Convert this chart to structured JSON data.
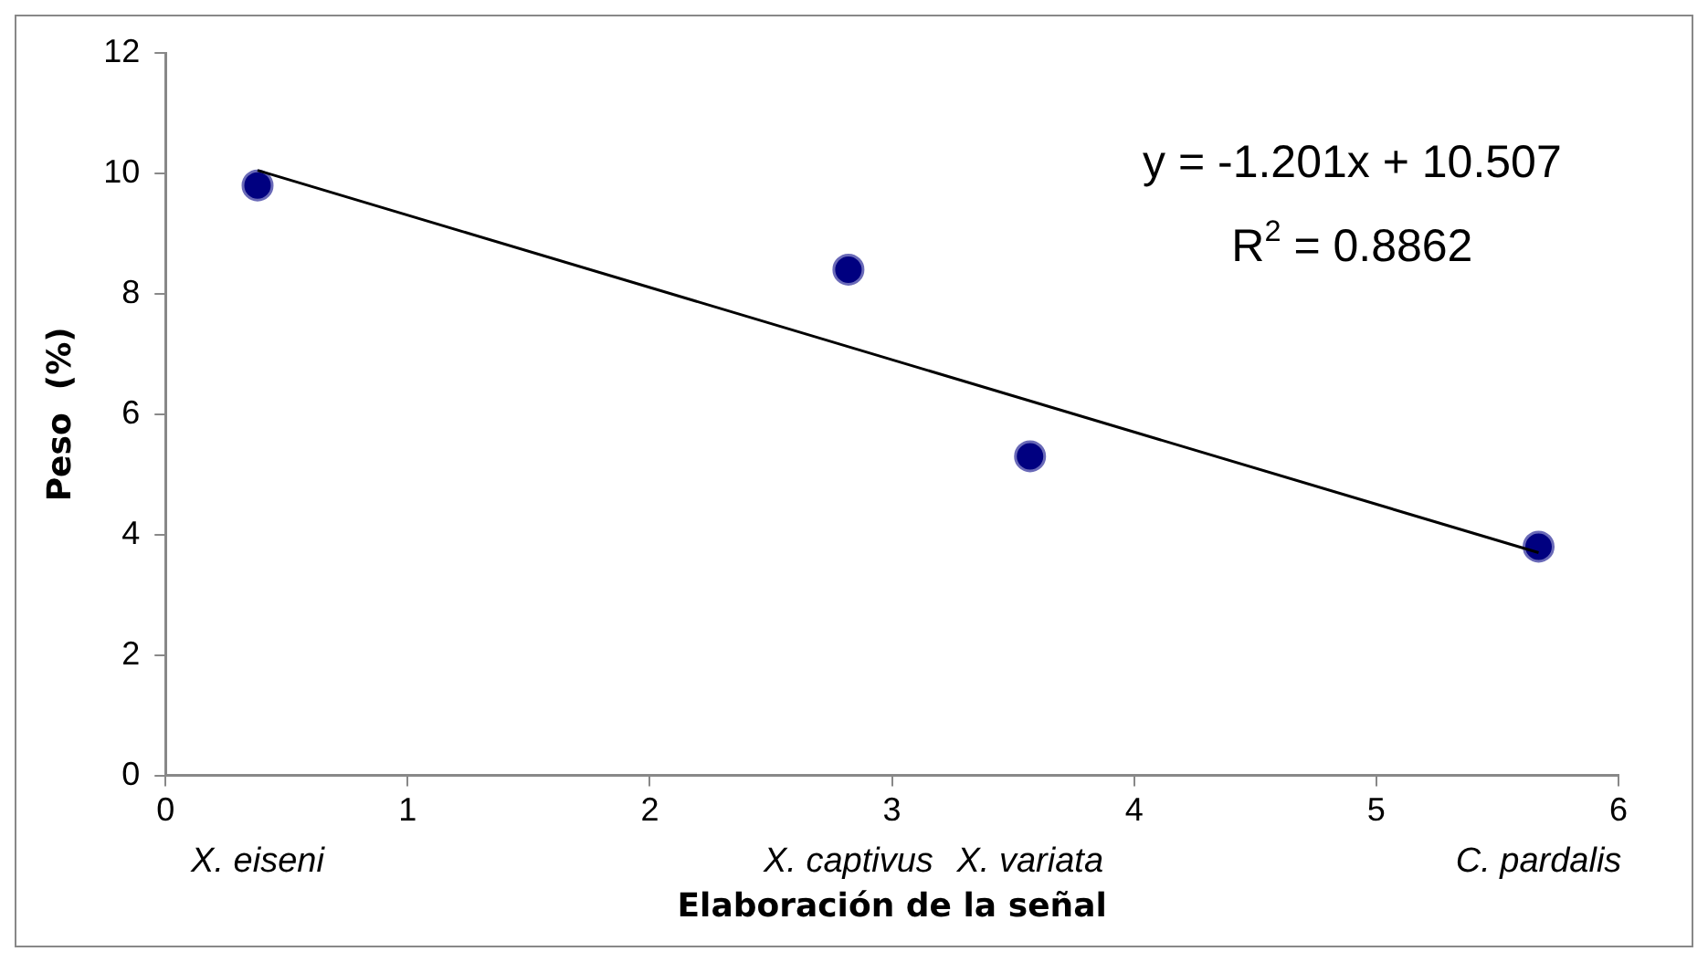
{
  "chart_data": {
    "type": "scatter",
    "xlabel": "Elaboración de la señal",
    "ylabel": "Peso  (%)",
    "xlim": [
      0,
      6
    ],
    "xticks": [
      0,
      1,
      2,
      3,
      4,
      5,
      6
    ],
    "ylim": [
      0,
      12
    ],
    "yticks": [
      0,
      2,
      4,
      6,
      8,
      10,
      12
    ],
    "grid": false,
    "legend": false,
    "marker": "circle",
    "annotations": [
      "y = -1.201x + 10.507",
      "R$^{2}$ = 0.8862",
      "X. eiseni",
      "X. captivus",
      "X. variata",
      "C. pardalis"
    ],
    "series": [
      {
        "type": "scatter",
        "color": "#000080",
        "x": [
          0.38,
          2.82,
          3.57,
          5.67
        ],
        "values": [
          9.8,
          8.4,
          5.3,
          3.8
        ]
      },
      {
        "type": "line",
        "color": "#000000",
        "marker": "none",
        "x": [
          0.38,
          5.67
        ],
        "values": [
          10.05,
          3.7
        ]
      }
    ]
  }
}
